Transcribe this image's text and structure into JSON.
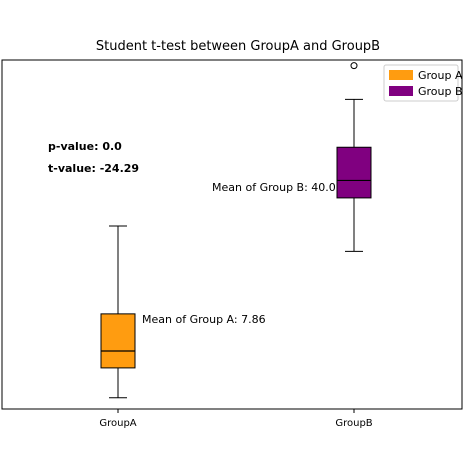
{
  "chart_data": {
    "type": "box",
    "title": "Student t-test between GroupA and GroupB",
    "xlabel": "",
    "ylabel": "",
    "categories": [
      "GroupA",
      "GroupB"
    ],
    "y_range": [
      -2,
      60
    ],
    "grid": false,
    "legend_position": "top-right",
    "series": [
      {
        "name": "Group A",
        "category": "GroupA",
        "color": "#ff9c10",
        "min": 0,
        "q1": 5.3,
        "median": 8.3,
        "q3": 14.9,
        "max": 30.5,
        "outliers": []
      },
      {
        "name": "Group B",
        "category": "GroupB",
        "color": "#800080",
        "min": 26,
        "q1": 35.5,
        "median": 38.6,
        "q3": 44.5,
        "max": 53,
        "outliers": [
          59
        ]
      }
    ],
    "annotations": {
      "mean_a": "Mean of Group A: 7.86",
      "mean_b": "Mean of Group B: 40.0",
      "p_value": "p-value: 0.0",
      "t_value": "t-value: -24.29"
    }
  }
}
